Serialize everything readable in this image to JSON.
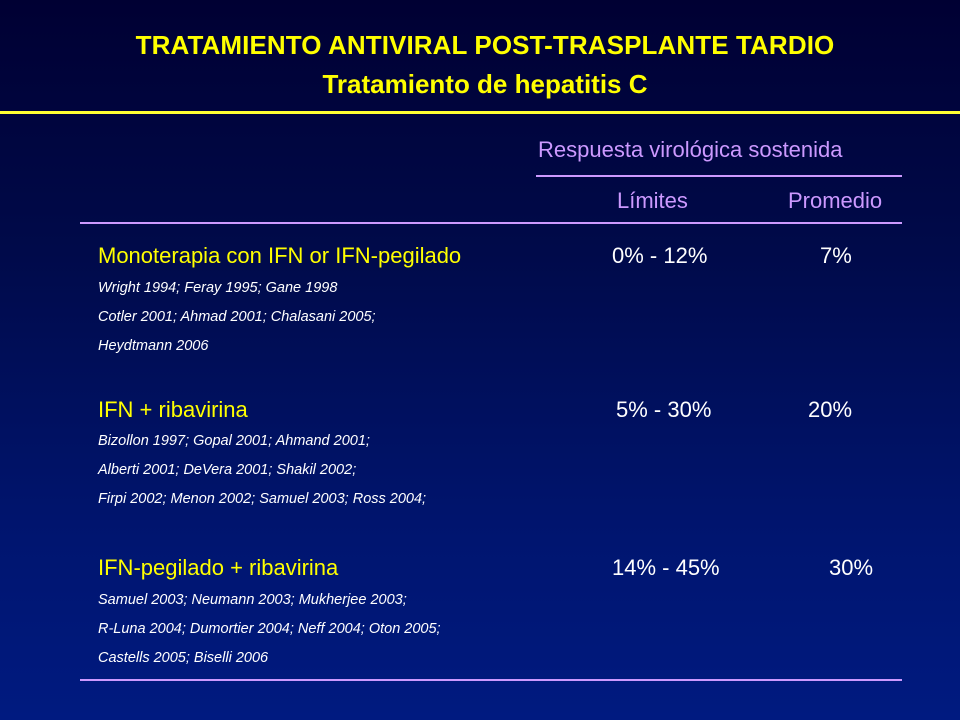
{
  "title": {
    "line1": "TRATAMIENTO ANTIVIRAL POST-TRASPLANTE TARDIO",
    "line2": "Tratamiento de hepatitis C"
  },
  "header": {
    "group": "Respuesta virológica sostenida",
    "col_limits": "Límites",
    "col_average": "Promedio"
  },
  "rows": [
    {
      "name": "Monoterapia con IFN or IFN-pegilado",
      "range": "0% - 12%",
      "average": "7%",
      "refs": [
        "Wright 1994; Feray 1995; Gane 1998",
        "Cotler 2001; Ahmad 2001; Chalasani 2005;",
        "Heydtmann 2006"
      ]
    },
    {
      "name": "IFN + ribavirina",
      "range": "5% - 30%",
      "average": "20%",
      "refs": [
        "Bizollon 1997; Gopal 2001; Ahmand 2001;",
        "Alberti 2001; DeVera 2001; Shakil 2002;",
        "Firpi 2002; Menon 2002; Samuel 2003; Ross 2004;"
      ]
    },
    {
      "name": "IFN-pegilado + ribavirina",
      "range": "14% - 45%",
      "average": "30%",
      "refs": [
        "Samuel 2003; Neumann 2003; Mukherjee 2003;",
        "R-Luna 2004; Dumortier 2004; Neff 2004; Oton 2005;",
        "Castells 2005; Biselli 2006"
      ]
    }
  ]
}
